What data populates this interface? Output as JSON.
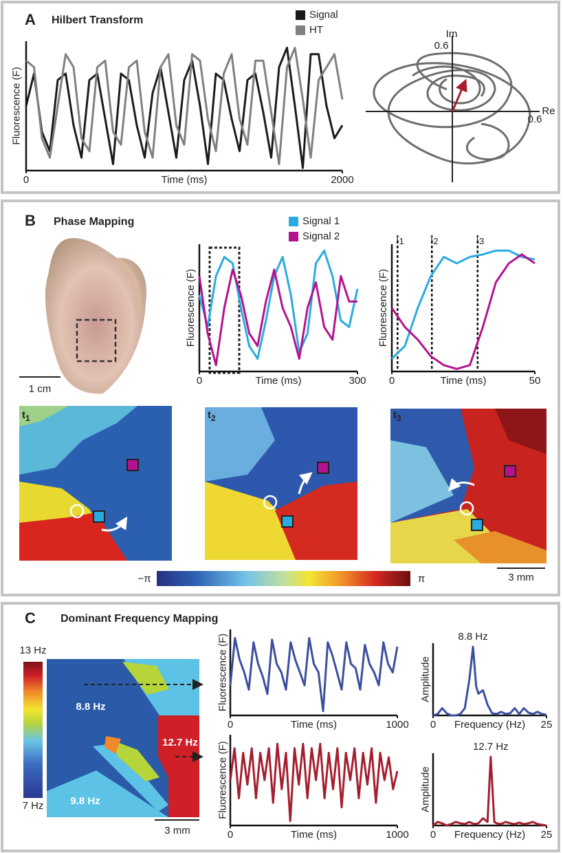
{
  "panels": [
    {
      "letter": "A",
      "title": "Hilbert Transform"
    },
    {
      "letter": "B",
      "title": "Phase Mapping"
    },
    {
      "letter": "C",
      "title": "Dominant Frequency Mapping"
    }
  ],
  "plots": [
    {
      "type": "line",
      "ylabel": "Fluorescence (F)",
      "xlabel": "Time (ms)",
      "xlim": [
        0,
        2000
      ],
      "xticks": [
        0,
        2000
      ],
      "ylim": [
        0,
        1
      ],
      "series": [
        {
          "name": "Signal",
          "color": "#1a1a1a",
          "values": [
            0.5,
            0.75,
            0.3,
            0.15,
            0.7,
            0.75,
            0.35,
            0.1,
            0.7,
            0.75,
            0.4,
            0.05,
            0.75,
            0.7,
            0.35,
            0.1,
            0.6,
            0.8,
            0.45,
            0.1,
            0.7,
            0.85,
            0.5,
            0.05,
            0.75,
            0.7,
            0.4,
            0.15,
            0.7,
            0.75,
            0.45,
            0.1,
            0.8,
            0.95,
            0.5,
            0.02,
            0.9,
            0.9,
            0.5,
            0.25,
            0.35
          ]
        },
        {
          "name": "HT",
          "color": "#808080",
          "values": [
            0.85,
            0.8,
            0.25,
            0.1,
            0.5,
            0.9,
            0.8,
            0.25,
            0.15,
            0.8,
            0.85,
            0.3,
            0.2,
            0.8,
            0.85,
            0.3,
            0.1,
            0.8,
            0.9,
            0.35,
            0.2,
            0.9,
            0.85,
            0.4,
            0.15,
            0.75,
            0.9,
            0.4,
            0.2,
            0.85,
            0.85,
            0.45,
            0.05,
            0.8,
            0.95,
            0.55,
            0.1,
            0.7,
            0.8,
            0.9,
            0.55
          ]
        }
      ]
    },
    {
      "type": "line",
      "ylabel": "Fluorescence (F)",
      "xlabel": "Time (ms)",
      "xlim": [
        0,
        300
      ],
      "xticks": [
        0,
        300
      ],
      "ylim": [
        0,
        1
      ],
      "series": [
        {
          "name": "Signal 1",
          "color": "#29abe2",
          "values": [
            0.6,
            0.35,
            0.75,
            0.9,
            0.85,
            0.5,
            0.2,
            0.1,
            0.4,
            0.75,
            0.9,
            0.6,
            0.15,
            0.3,
            0.85,
            0.95,
            0.75,
            0.4,
            0.35,
            0.65
          ]
        },
        {
          "name": "Signal 2",
          "color": "#b5128f",
          "values": [
            0.75,
            0.3,
            0.05,
            0.5,
            0.8,
            0.6,
            0.3,
            0.2,
            0.55,
            0.8,
            0.5,
            0.35,
            0.1,
            0.5,
            0.7,
            0.35,
            0.25,
            0.75,
            0.55,
            0.55
          ]
        }
      ]
    },
    {
      "type": "line",
      "ylabel": "Fluorescence (F)",
      "xlabel": "Time (ms)",
      "xlim": [
        0,
        50
      ],
      "xticks": [
        0,
        50
      ],
      "ylim": [
        0,
        1
      ],
      "markers": [
        {
          "x": 2,
          "label": {
            "base": "t",
            "sub": "1"
          }
        },
        {
          "x": 14,
          "label": {
            "base": "t",
            "sub": "2"
          }
        },
        {
          "x": 30,
          "label": {
            "base": "t",
            "sub": "3"
          }
        }
      ],
      "series": [
        {
          "color": "#29abe2",
          "values": [
            0.1,
            0.2,
            0.5,
            0.75,
            0.9,
            0.85,
            0.9,
            0.92,
            0.95,
            0.95,
            0.9,
            0.88
          ]
        },
        {
          "color": "#b5128f",
          "values": [
            0.5,
            0.35,
            0.25,
            0.12,
            0.05,
            0.02,
            0.05,
            0.35,
            0.7,
            0.85,
            0.92,
            0.85
          ]
        }
      ]
    },
    {
      "type": "line",
      "ylabel": "Fluorescence (F)",
      "xlabel": "Time (ms)",
      "xlim": [
        0,
        1000
      ],
      "xticks": [
        0,
        1000
      ],
      "ylim": [
        0,
        1
      ],
      "series": [
        {
          "color": "#3a4fa0",
          "values": [
            0.35,
            0.9,
            0.65,
            0.5,
            0.3,
            0.85,
            0.6,
            0.45,
            0.25,
            0.88,
            0.6,
            0.5,
            0.3,
            0.85,
            0.65,
            0.5,
            0.35,
            0.9,
            0.6,
            0.5,
            0.05,
            0.85,
            0.7,
            0.5,
            0.3,
            0.85,
            0.6,
            0.55,
            0.3,
            0.82,
            0.6,
            0.5,
            0.35,
            0.85,
            0.6,
            0.5,
            0.8
          ]
        }
      ]
    },
    {
      "type": "spectrum",
      "ylabel": "Amplitude",
      "xlabel": "Frequency (Hz)",
      "xlim": [
        0,
        25
      ],
      "xticks": [
        0,
        25
      ],
      "ylim": [
        0,
        1
      ],
      "peak_label": "8.8 Hz",
      "series": [
        {
          "color": "#3a4fa0",
          "x": [
            0,
            1,
            2,
            3,
            4,
            5,
            6,
            7,
            8,
            8.8,
            9.5,
            10,
            11,
            12,
            13,
            14,
            15,
            16,
            17,
            18,
            19,
            20,
            21,
            22,
            23,
            24,
            25
          ],
          "values": [
            0,
            0.02,
            0.1,
            0.03,
            0,
            0,
            0.02,
            0.1,
            0.5,
            0.95,
            0.4,
            0.3,
            0.35,
            0.15,
            0.03,
            0.02,
            0.05,
            0.02,
            0.03,
            0.1,
            0.02,
            0.1,
            0.04,
            0.02,
            0.05,
            0.02,
            0.01
          ]
        }
      ]
    },
    {
      "type": "line",
      "ylabel": "Fluorescence (F)",
      "xlabel": "Time (ms)",
      "xlim": [
        0,
        1000
      ],
      "xticks": [
        0,
        1000
      ],
      "ylim": [
        0,
        1
      ],
      "series": [
        {
          "color": "#a51e2d",
          "values": [
            0.5,
            0.85,
            0.3,
            0.8,
            0.45,
            0.85,
            0.3,
            0.8,
            0.5,
            0.85,
            0.25,
            0.9,
            0.4,
            0.8,
            0.05,
            0.85,
            0.45,
            0.9,
            0.3,
            0.85,
            0.5,
            0.9,
            0.3,
            0.8,
            0.4,
            0.85,
            0.2,
            0.8,
            0.5,
            0.85,
            0.3,
            0.8,
            0.45,
            0.85,
            0.25,
            0.8,
            0.5,
            0.75,
            0.4,
            0.6
          ]
        }
      ]
    },
    {
      "type": "spectrum",
      "ylabel": "Amplitude",
      "xlabel": "Frequency (Hz)",
      "xlim": [
        0,
        25
      ],
      "xticks": [
        0,
        25
      ],
      "ylim": [
        0,
        1
      ],
      "peak_label": "12.7 Hz",
      "series": [
        {
          "color": "#a51e2d",
          "x": [
            0,
            1,
            2,
            3,
            4,
            5,
            6,
            7,
            8,
            9,
            10,
            11,
            12,
            12.7,
            13.5,
            14,
            15,
            16,
            17,
            18,
            19,
            20,
            21,
            22,
            23,
            24,
            25
          ],
          "values": [
            0,
            0.05,
            0.03,
            0,
            0.02,
            0.05,
            0.03,
            0.02,
            0.05,
            0.02,
            0.03,
            0.1,
            0.05,
            0.95,
            0.05,
            0.03,
            0.02,
            0.05,
            0.03,
            0.02,
            0.04,
            0.02,
            0.03,
            0.05,
            0.02,
            0.01,
            0
          ]
        }
      ]
    }
  ],
  "polar": {
    "im_label": "Im",
    "re_label": "Re",
    "im_tick": "0.6",
    "re_tick": "0.6"
  },
  "phase": {
    "heart_scale": "1 cm",
    "maps": [
      {
        "base": "t",
        "sub": "1"
      },
      {
        "base": "t",
        "sub": "2"
      },
      {
        "base": "t",
        "sub": "3"
      }
    ],
    "colorbar_min": "−π",
    "colorbar_max": "π",
    "map_scale": "3 mm"
  },
  "frequency": {
    "colorbar_max": "13 Hz",
    "colorbar_min": "7 Hz",
    "region_labels": [
      "8.8 Hz",
      "12.7 Hz",
      "9.8 Hz"
    ],
    "map_scale": "3 mm"
  }
}
